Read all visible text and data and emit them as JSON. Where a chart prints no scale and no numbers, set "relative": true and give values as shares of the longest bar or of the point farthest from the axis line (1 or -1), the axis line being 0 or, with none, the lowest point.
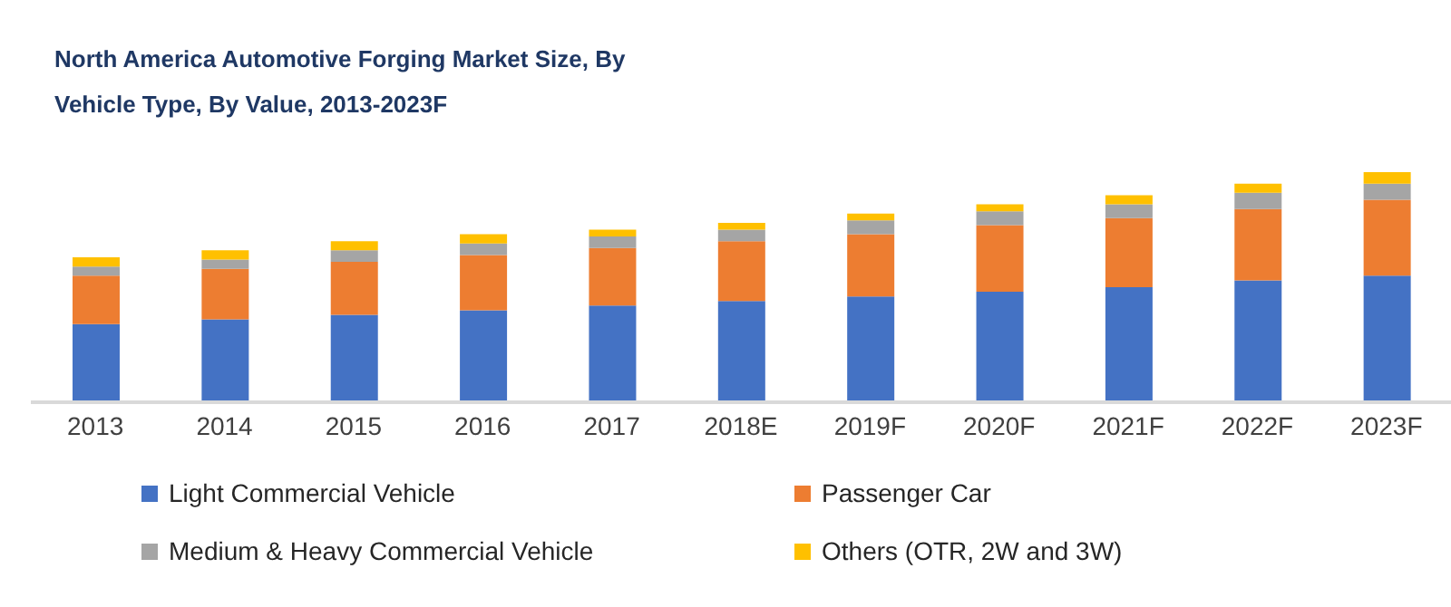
{
  "chart_data": {
    "type": "bar",
    "title": "North America Automotive Forging Market Size, By Vehicle Type, By Value, 2013-2023F",
    "categories": [
      "2013",
      "2014",
      "2015",
      "2016",
      "2017",
      "2018E",
      "2019F",
      "2020F",
      "2021F",
      "2022F",
      "2023F"
    ],
    "stacked": true,
    "relative": true,
    "legend": "bottom",
    "grid": false,
    "series": [
      {
        "name": "Light Commercial Vehicle",
        "color": "#4472c4",
        "values": [
          0.34,
          0.36,
          0.38,
          0.4,
          0.42,
          0.44,
          0.46,
          0.48,
          0.5,
          0.53,
          0.55
        ]
      },
      {
        "name": "Passenger Car",
        "color": "#ed7d31",
        "values": [
          0.21,
          0.22,
          0.23,
          0.24,
          0.25,
          0.26,
          0.27,
          0.29,
          0.3,
          0.31,
          0.33
        ]
      },
      {
        "name": "Medium & Heavy Commercial Vehicle",
        "color": "#a5a5a5",
        "values": [
          0.04,
          0.04,
          0.05,
          0.05,
          0.05,
          0.05,
          0.06,
          0.06,
          0.06,
          0.07,
          0.07
        ]
      },
      {
        "name": "Others (OTR, 2W and 3W)",
        "color": "#ffc000",
        "values": [
          0.04,
          0.04,
          0.04,
          0.04,
          0.03,
          0.03,
          0.03,
          0.03,
          0.04,
          0.04,
          0.05
        ]
      }
    ]
  }
}
